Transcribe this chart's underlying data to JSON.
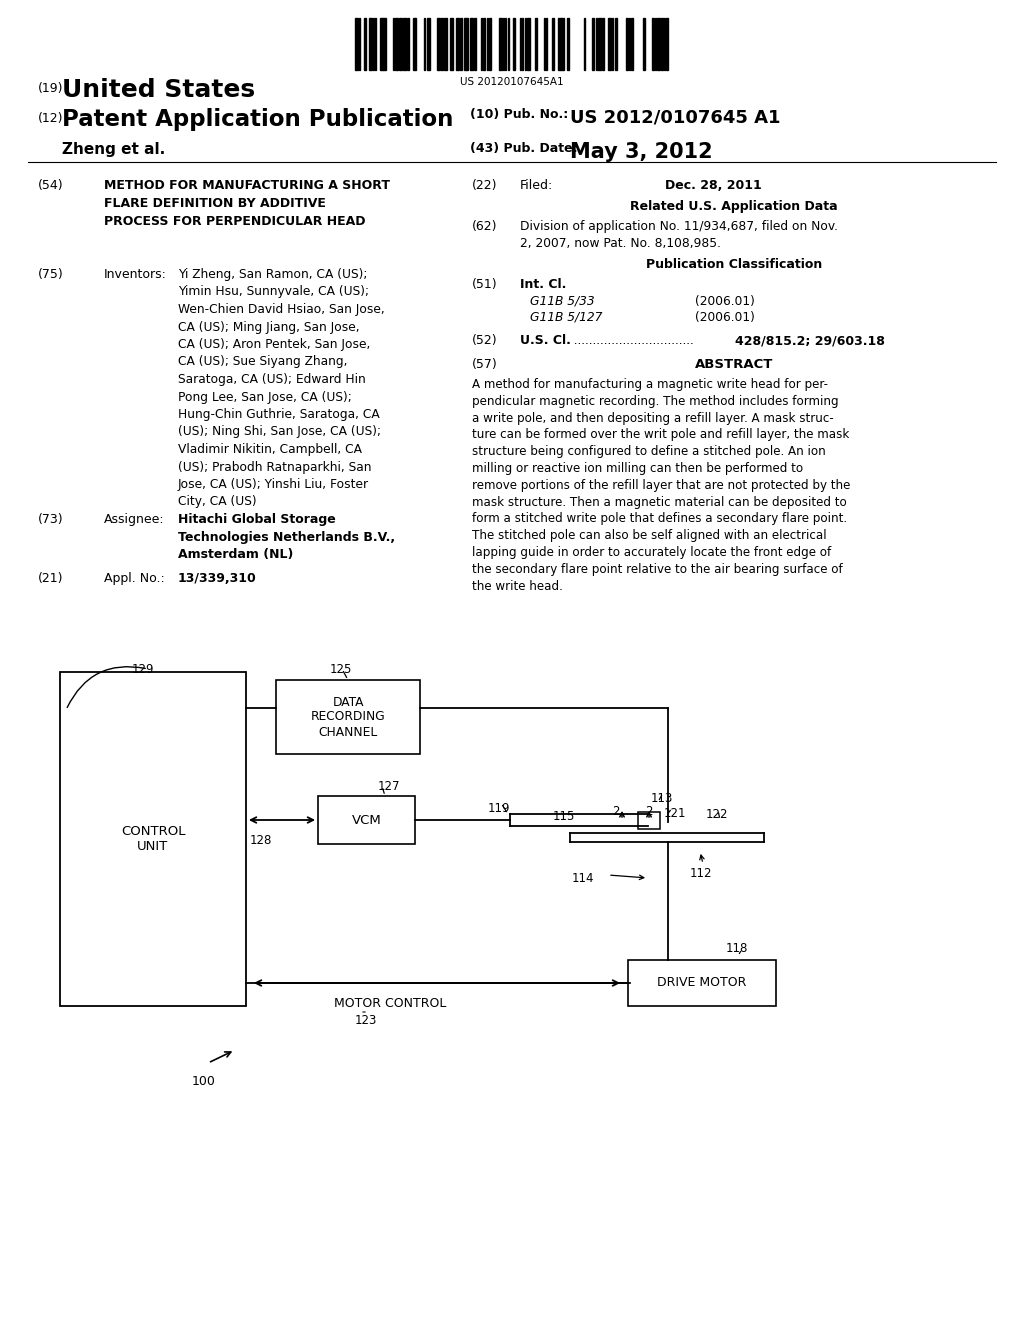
{
  "bg": "#ffffff",
  "barcode_text": "US 20120107645A1",
  "h_country_num": "(19)",
  "h_country": "United States",
  "h_type_num": "(12)",
  "h_type": "Patent Application Publication",
  "h_pubno_label": "(10) Pub. No.:",
  "h_pubno": "US 2012/0107645 A1",
  "h_author": "Zheng et al.",
  "h_pubdate_label": "(43) Pub. Date:",
  "h_pubdate": "May 3, 2012",
  "lc_title_num": "(54)",
  "lc_title": "METHOD FOR MANUFACTURING A SHORT\nFLARE DEFINITION BY ADDITIVE\nPROCESS FOR PERPENDICULAR HEAD",
  "lc_inv_num": "(75)",
  "lc_inv_label": "Inventors:",
  "lc_inv": "Yi Zheng, San Ramon, CA (US);\nYimin Hsu, Sunnyvale, CA (US);\nWen-Chien David Hsiao, San Jose,\nCA (US); Ming Jiang, San Jose,\nCA (US); Aron Pentek, San Jose,\nCA (US); Sue Siyang Zhang,\nSaratoga, CA (US); Edward Hin\nPong Lee, San Jose, CA (US);\nHung-Chin Guthrie, Saratoga, CA\n(US); Ning Shi, San Jose, CA (US);\nVladimir Nikitin, Campbell, CA\n(US); Prabodh Ratnaparkhi, San\nJose, CA (US); Yinshi Liu, Foster\nCity, CA (US)",
  "lc_asgn_num": "(73)",
  "lc_asgn_label": "Assignee:",
  "lc_asgn": "Hitachi Global Storage\nTechnologies Netherlands B.V.,\nAmsterdam (NL)",
  "lc_appl_num": "(21)",
  "lc_appl_label": "Appl. No.:",
  "lc_appl": "13/339,310",
  "rc_filed_num": "(22)",
  "rc_filed_label": "Filed:",
  "rc_filed": "Dec. 28, 2011",
  "rc_related_hdr": "Related U.S. Application Data",
  "rc_div_num": "(62)",
  "rc_div": "Division of application No. 11/934,687, filed on Nov.\n2, 2007, now Pat. No. 8,108,985.",
  "rc_pubcls_hdr": "Publication Classification",
  "rc_intcl_num": "(51)",
  "rc_intcl_label": "Int. Cl.",
  "rc_intcl1": "G11B 5/33",
  "rc_intcl1_date": "(2006.01)",
  "rc_intcl2": "G11B 5/127",
  "rc_intcl2_date": "(2006.01)",
  "rc_uscl_num": "(52)",
  "rc_uscl_label": "U.S. Cl.",
  "rc_uscl_dots": " ................................",
  "rc_uscl": "428/815.2; 29/603.18",
  "rc_abs_num": "(57)",
  "rc_abs_hdr": "ABSTRACT",
  "rc_abs": "A method for manufacturing a magnetic write head for per-\npendicular magnetic recording. The method includes forming\na write pole, and then depositing a refill layer. A mask struc-\nture can be formed over the writ pole and refill layer, the mask\nstructure being configured to define a stitched pole. An ion\nmilling or reactive ion milling can then be performed to\nremove portions of the refill layer that are not protected by the\nmask structure. Then a magnetic material can be deposited to\nform a stitched write pole that defines a secondary flare point.\nThe stitched pole can also be self aligned with an electrical\nlapping guide in order to accurately locate the front edge of\nthe secondary flare point relative to the air bearing surface of\nthe write head.",
  "diag_lbl_100": "100",
  "diag_lbl_129": "129",
  "diag_lbl_125": "125",
  "diag_lbl_127": "127",
  "diag_lbl_128": "128",
  "diag_lbl_119": "119",
  "diag_lbl_115": "115",
  "diag_lbl_113": "113",
  "diag_lbl_121": "121",
  "diag_lbl_122": "122",
  "diag_lbl_114": "114",
  "diag_lbl_112": "112",
  "diag_lbl_118": "118",
  "diag_lbl_123": "123",
  "diag_lbl_2": "2",
  "diag_box_control": "CONTROL\nUNIT",
  "diag_box_data": "DATA\nRECORDING\nCHANNEL",
  "diag_box_vcm": "VCM",
  "diag_box_motor": "DRIVE MOTOR",
  "diag_lbl_motorctrl": "MOTOR CONTROL"
}
